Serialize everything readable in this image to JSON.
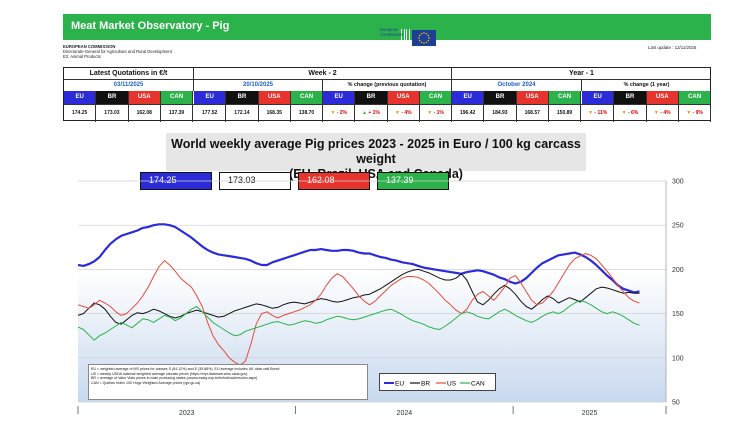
{
  "header": {
    "title": "Meat Market Observatory - Pig",
    "commission": "EUROPEAN COMMISSION",
    "directorate": "Directorate-General for Agriculture and Rural Development",
    "unit": "E3. Animal Products",
    "ec_name": "European",
    "ec_name2": "Commission",
    "last_update_label": "Last update :",
    "last_update": "12/11/2025"
  },
  "quotations": {
    "latest": {
      "label": "Latest Quotations in €/t",
      "date": "03/11/2025",
      "EU": "174.25",
      "BR": "173.03",
      "USA": "162.08",
      "CAN": "137.39"
    },
    "week2": {
      "label": "Week - 2",
      "date": "20/10/2025",
      "EU": "177.52",
      "BR": "172.14",
      "USA": "168.35",
      "CAN": "138.70",
      "pct_label": "% change (previous quotation)",
      "pct": {
        "EU": "- 2%",
        "BR": "+ 1%",
        "USA": "- 4%",
        "CAN": "- 1%"
      }
    },
    "year1": {
      "label": "Year - 1",
      "date": "October 2024",
      "EU": "196.42",
      "BR": "184.93",
      "USA": "168.57",
      "CAN": "150.89",
      "pct_label": "% change (1 year)",
      "pct": {
        "EU": "- 11%",
        "BR": "- 6%",
        "USA": "- 4%",
        "CAN": "- 9%"
      }
    },
    "countries": [
      "EU",
      "BR",
      "USA",
      "CAN"
    ]
  },
  "colors": {
    "EU": "#2b2bd9",
    "BR": "#111111",
    "USA": "#e84b3c",
    "CAN": "#2bb24b",
    "banner": "#2bb24b"
  },
  "chart_data": {
    "type": "line",
    "title": "World weekly average Pig prices 2023 - 2025  in Euro / 100 kg carcass weight",
    "subtitle": "(EU, Brazil, USA and Canada)",
    "x_ticks": [
      "2023",
      "2024",
      "2025"
    ],
    "ylim": [
      50,
      300
    ],
    "y_ticks": [
      50,
      100,
      150,
      200,
      250,
      300
    ],
    "grid": true,
    "value_boxes": [
      "174.25",
      "173.03",
      "162.08",
      "137.39"
    ],
    "legend": [
      "EU",
      "BR",
      "US",
      "CAN"
    ],
    "notes": [
      "EU     = weighted average of MS prices for classes S (64.12%) and E (35.88%). EU average includes UK data  until Brexit",
      "US     = weekly USDA national weighted average carcass prices (https://mpr.datamart.ams.usda.gov)",
      "BR     = average of Valor Visto prices in main producing states (cepea.esalq.usp.br/br/indicador/suino.aspx)",
      "CAN  = Quebec Index 100 Hogs Weighted Average prices (qpr.gc.ca)"
    ],
    "series": [
      {
        "name": "EU",
        "values": [
          205,
          204,
          206,
          209,
          214,
          222,
          229,
          234,
          238,
          240,
          242,
          244,
          247,
          248,
          250,
          251,
          251,
          250,
          248,
          244,
          240,
          236,
          231,
          226,
          222,
          219,
          217,
          216,
          215,
          214,
          213,
          212,
          210,
          207,
          205,
          205,
          208,
          210,
          212,
          214,
          216,
          218,
          220,
          222,
          222,
          223,
          222,
          221,
          221,
          222,
          222,
          221,
          219,
          218,
          218,
          216,
          214,
          213,
          211,
          210,
          208,
          207,
          206,
          204,
          202,
          201,
          200,
          199,
          198,
          197,
          196,
          195,
          197,
          198,
          199,
          198,
          196,
          194,
          191,
          189,
          186,
          184,
          186,
          190,
          196,
          202,
          207,
          210,
          213,
          216,
          217,
          218,
          219,
          217,
          214,
          210,
          205,
          199,
          193,
          188,
          182,
          178,
          176,
          174,
          175
        ]
      },
      {
        "name": "BR",
        "values": [
          148,
          150,
          156,
          162,
          160,
          155,
          147,
          140,
          138,
          143,
          148,
          151,
          150,
          152,
          155,
          153,
          150,
          147,
          145,
          147,
          150,
          152,
          154,
          152,
          150,
          148,
          146,
          147,
          150,
          153,
          155,
          157,
          159,
          161,
          160,
          158,
          156,
          157,
          160,
          162,
          163,
          162,
          161,
          163,
          165,
          167,
          166,
          164,
          163,
          164,
          166,
          168,
          169,
          171,
          172,
          175,
          178,
          182,
          186,
          190,
          194,
          197,
          199,
          200,
          198,
          196,
          193,
          190,
          188,
          188,
          190,
          195,
          188,
          175,
          163,
          160,
          165,
          172,
          178,
          182,
          178,
          172,
          164,
          158,
          155,
          160,
          166,
          170,
          167,
          162,
          165,
          168,
          166,
          163,
          168,
          173,
          178,
          180,
          179,
          177,
          175,
          173,
          174,
          173,
          173
        ]
      },
      {
        "name": "US",
        "values": [
          160,
          158,
          156,
          160,
          165,
          162,
          158,
          152,
          148,
          150,
          156,
          162,
          170,
          180,
          192,
          203,
          210,
          205,
          198,
          190,
          185,
          180,
          170,
          158,
          140,
          125,
          115,
          108,
          100,
          95,
          92,
          96,
          115,
          138,
          150,
          152,
          148,
          145,
          148,
          150,
          152,
          154,
          157,
          160,
          165,
          172,
          182,
          190,
          195,
          192,
          185,
          178,
          170,
          164,
          160,
          164,
          170,
          176,
          182,
          186,
          190,
          192,
          192,
          191,
          188,
          184,
          178,
          172,
          165,
          160,
          154,
          150,
          155,
          165,
          172,
          175,
          170,
          165,
          172,
          180,
          190,
          193,
          185,
          175,
          165,
          160,
          162,
          168,
          175,
          185,
          195,
          205,
          212,
          215,
          218,
          216,
          212,
          205,
          198,
          190,
          182,
          175,
          168,
          164,
          162
        ]
      },
      {
        "name": "CAN",
        "values": [
          135,
          132,
          126,
          120,
          125,
          128,
          132,
          136,
          140,
          137,
          134,
          139,
          144,
          143,
          140,
          144,
          148,
          146,
          142,
          145,
          150,
          155,
          158,
          152,
          146,
          140,
          136,
          132,
          128,
          125,
          126,
          130,
          132,
          134,
          136,
          138,
          140,
          141,
          139,
          137,
          138,
          140,
          142,
          141,
          139,
          140,
          143,
          145,
          147,
          146,
          144,
          143,
          144,
          146,
          148,
          150,
          152,
          154,
          155,
          152,
          149,
          145,
          142,
          140,
          138,
          135,
          133,
          132,
          136,
          140,
          145,
          150,
          152,
          150,
          147,
          145,
          144,
          148,
          152,
          155,
          152,
          148,
          145,
          142,
          140,
          143,
          147,
          150,
          152,
          150,
          153,
          158,
          162,
          165,
          163,
          160,
          156,
          152,
          150,
          152,
          150,
          147,
          143,
          139,
          137
        ]
      }
    ]
  }
}
